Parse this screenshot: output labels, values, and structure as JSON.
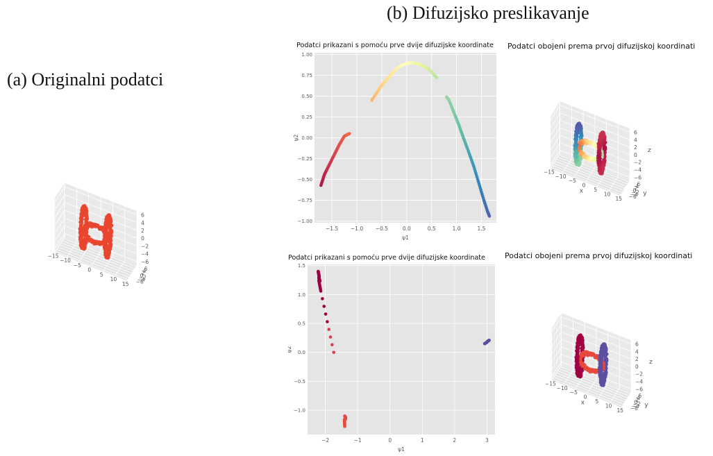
{
  "captions": {
    "a": "(a) Originalni podatci",
    "b": "(b) Difuzijsko preslikavanje"
  },
  "colors": {
    "panel_bg": "#e5e5e5",
    "grid": "#ffffff",
    "original_points": "#e8462f",
    "spectral_dark_red": "#9e0142",
    "spectral_orange": "#f46d43",
    "spectral_yellow": "#ffffbf",
    "spectral_teal": "#3288bd",
    "spectral_dark_blue": "#5e4fa2"
  },
  "chart_data": [
    {
      "id": "original",
      "type": "scatter3d",
      "title": "",
      "x_ticks": [
        "−15",
        "−10",
        "−5",
        "0",
        "5",
        "10",
        "15"
      ],
      "y_ticks": [
        "−6",
        "−4",
        "−2",
        "0",
        "2",
        "4",
        "6"
      ],
      "z_ticks": [
        "6",
        "4",
        "2",
        "0",
        "−2",
        "−4",
        "−6"
      ],
      "xlabel": "",
      "ylabel": "",
      "zlabel": "",
      "shape": "two vertical rings (x ≈ ±5) joined by a diagonal loop",
      "color": "single (red-orange)"
    },
    {
      "id": "diffusion-1-2d",
      "type": "scatter",
      "title": "Podatci prikazani s pomoću prve dvije difuzijske koordinate",
      "xlabel": "ψ1",
      "ylabel": "ψ2",
      "xlim": [
        -1.85,
        1.8
      ],
      "ylim": [
        -1.02,
        1.02
      ],
      "x_ticks": [
        "−1.5",
        "−1.0",
        "−0.5",
        "0.0",
        "0.5",
        "1.0",
        "1.5"
      ],
      "y_ticks": [
        "1.00",
        "0.75",
        "0.50",
        "0.25",
        "0.00",
        "−0.25",
        "−0.50",
        "−0.75",
        "−1.00"
      ],
      "x_tick_values": [
        -1.5,
        -1.0,
        -0.5,
        0.0,
        0.5,
        1.0,
        1.5
      ],
      "y_tick_values": [
        1.0,
        0.75,
        0.5,
        0.25,
        0.0,
        -0.25,
        -0.5,
        -0.75,
        -1.0
      ],
      "series": [
        {
          "points": [
            [
              -1.72,
              -0.57
            ],
            [
              -1.65,
              -0.44
            ],
            [
              -1.55,
              -0.32
            ],
            [
              -1.45,
              -0.2
            ],
            [
              -1.35,
              -0.08
            ],
            [
              -1.25,
              0.02
            ],
            [
              -1.15,
              0.05
            ]
          ]
        },
        {
          "points": [
            [
              -0.7,
              0.45
            ],
            [
              -0.5,
              0.63
            ],
            [
              -0.4,
              0.7
            ],
            [
              -0.3,
              0.77
            ],
            [
              -0.2,
              0.83
            ],
            [
              -0.1,
              0.87
            ],
            [
              0.0,
              0.89
            ],
            [
              0.1,
              0.9
            ],
            [
              0.2,
              0.89
            ],
            [
              0.3,
              0.87
            ],
            [
              0.4,
              0.84
            ],
            [
              0.5,
              0.79
            ],
            [
              0.6,
              0.72
            ]
          ]
        },
        {
          "points": [
            [
              0.8,
              0.49
            ],
            [
              0.85,
              0.45
            ],
            [
              0.95,
              0.3
            ],
            [
              1.05,
              0.15
            ],
            [
              1.15,
              -0.02
            ],
            [
              1.25,
              -0.18
            ],
            [
              1.35,
              -0.35
            ],
            [
              1.45,
              -0.55
            ],
            [
              1.55,
              -0.75
            ],
            [
              1.62,
              -0.88
            ],
            [
              1.66,
              -0.94
            ]
          ]
        }
      ]
    },
    {
      "id": "diffusion-1-3d",
      "type": "scatter3d",
      "title": "Podatci obojeni prema prvoj difuzijskoj koordinati",
      "x_ticks": [
        "−15",
        "−10",
        "−5",
        "0",
        "5",
        "10",
        "15"
      ],
      "y_ticks": [
        "−6",
        "−4",
        "−2",
        "0",
        "2",
        "4",
        "6"
      ],
      "z_ticks": [
        "6",
        "4",
        "2",
        "0",
        "−2",
        "−4",
        "−6"
      ],
      "xlabel": "x",
      "ylabel": "y",
      "zlabel": "z",
      "shape": "left ring blue, right ring dark red, connecting loop yellow-green"
    },
    {
      "id": "diffusion-2-2d",
      "type": "scatter",
      "title": "Podatci prikazani s pomoću prve dvije difuzijske koordinate",
      "xlabel": "ψ1",
      "ylabel": "ψ2",
      "xlim": [
        -2.55,
        3.25
      ],
      "ylim": [
        -1.42,
        1.52
      ],
      "x_ticks": [
        "−2",
        "−1",
        "0",
        "1",
        "2",
        "3"
      ],
      "y_ticks": [
        "1.5",
        "1.0",
        "0.5",
        "0.0",
        "−0.5",
        "−1.0"
      ],
      "x_tick_values": [
        -2,
        -1,
        0,
        1,
        2,
        3
      ],
      "y_tick_values": [
        1.5,
        1.0,
        0.5,
        0.0,
        -0.5,
        -1.0
      ],
      "series": [
        {
          "points": [
            [
              -2.22,
              1.4
            ],
            [
              -2.21,
              1.37
            ],
            [
              -2.2,
              1.34
            ],
            [
              -2.19,
              1.31
            ],
            [
              -2.2,
              1.28
            ],
            [
              -2.18,
              1.26
            ],
            [
              -2.17,
              1.23
            ],
            [
              -2.2,
              1.24
            ],
            [
              -2.14,
              1.06
            ],
            [
              -1.74,
              0.0
            ]
          ]
        },
        {
          "points": [
            [
              -1.4,
              -1.1
            ],
            [
              -1.37,
              -1.13
            ],
            [
              -1.38,
              -1.16
            ],
            [
              -1.41,
              -1.16
            ],
            [
              -1.4,
              -1.28
            ]
          ]
        },
        {
          "points": [
            [
              2.93,
              0.15
            ],
            [
              2.96,
              0.16
            ],
            [
              2.99,
              0.17
            ],
            [
              3.02,
              0.19
            ],
            [
              3.05,
              0.2
            ],
            [
              3.07,
              0.21
            ]
          ]
        }
      ]
    },
    {
      "id": "diffusion-2-3d",
      "type": "scatter3d",
      "title": "Podatci obojeni prema prvoj difuzijskoj koordinati",
      "x_ticks": [
        "−15",
        "−10",
        "−5",
        "0",
        "5",
        "10",
        "15"
      ],
      "y_ticks": [
        "−6",
        "−4",
        "−2",
        "0",
        "2",
        "4",
        "6"
      ],
      "z_ticks": [
        "6",
        "4",
        "2",
        "0",
        "−2",
        "−4",
        "−6"
      ],
      "xlabel": "x",
      "ylabel": "y",
      "zlabel": "z",
      "shape": "left ring dark red, right ring blue, connecting loop orange-red"
    }
  ]
}
